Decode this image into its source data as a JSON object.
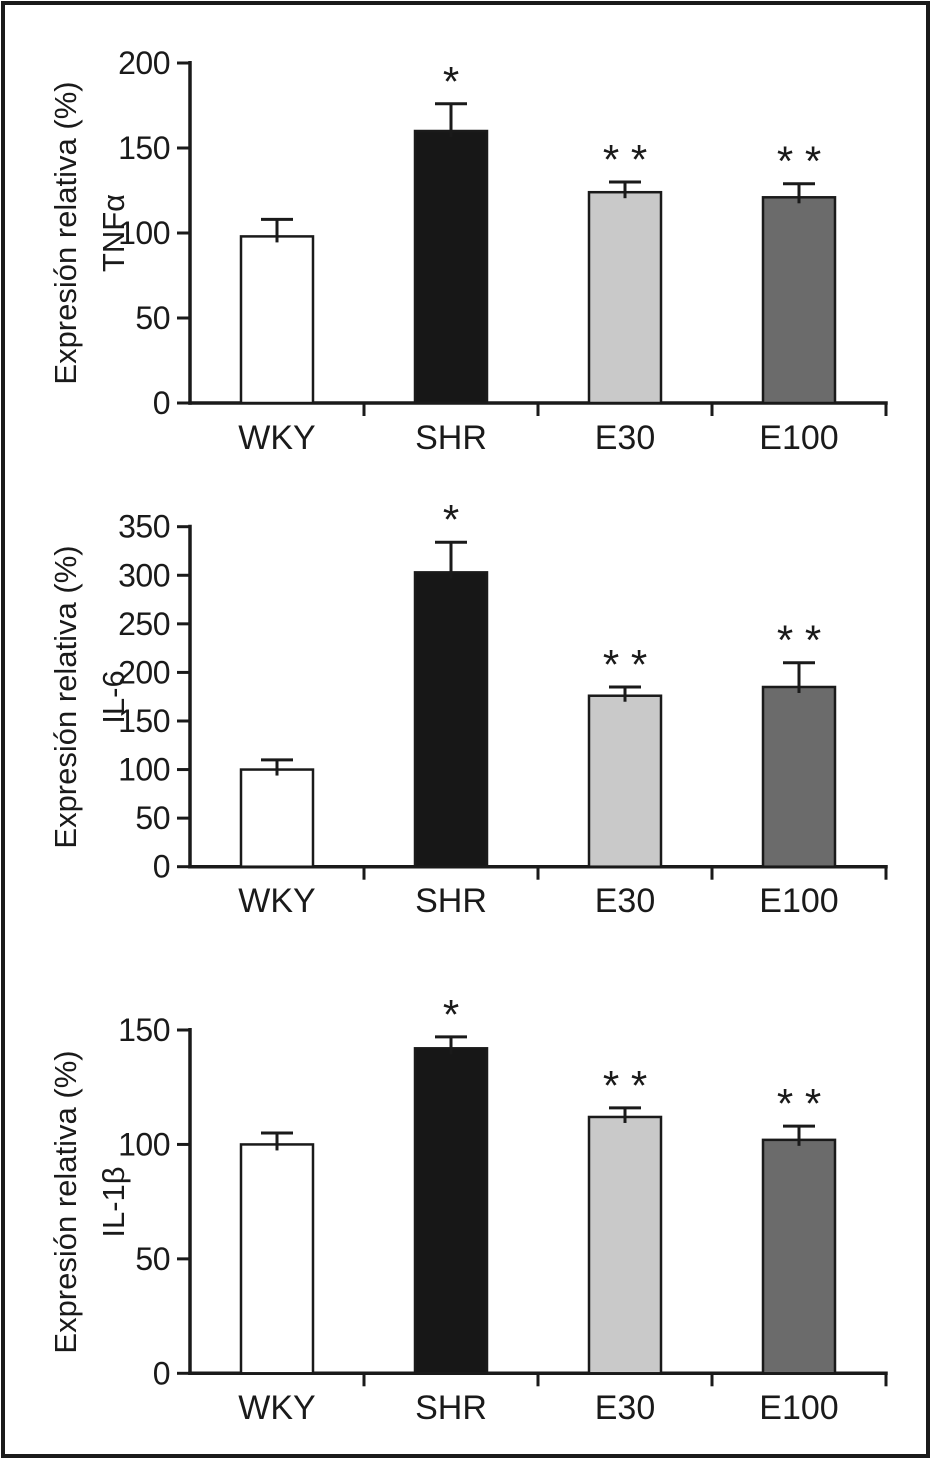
{
  "figure": {
    "background_color": "#ffffff",
    "frame_color": "#1a1a1a",
    "text_color": "#1a1a1a"
  },
  "bar_style": {
    "outline_color": "#1a1a1a",
    "fill_colors": [
      "#ffffff",
      "#171717",
      "#c9c9c9",
      "#6b6b6b"
    ]
  },
  "chart_data": [
    {
      "type": "bar",
      "title": "",
      "ylabel": "Expresión relativa (%)",
      "ylabel_line2": "TNFα",
      "xlabel": "",
      "categories": [
        "WKY",
        "SHR",
        "E30",
        "E100"
      ],
      "values": [
        98,
        160,
        124,
        121
      ],
      "errors_plus": [
        10,
        16,
        6,
        8
      ],
      "significance": [
        "",
        "*",
        "**",
        "**"
      ],
      "ylim": [
        0,
        200
      ],
      "yticks": [
        0,
        50,
        100,
        150,
        200
      ],
      "grid": false,
      "legend": null,
      "bar_colors": [
        "#ffffff",
        "#171717",
        "#c9c9c9",
        "#6b6b6b"
      ]
    },
    {
      "type": "bar",
      "title": "",
      "ylabel": "Expresión relativa (%)",
      "ylabel_line2": "IL-6",
      "xlabel": "",
      "categories": [
        "WKY",
        "SHR",
        "E30",
        "E100"
      ],
      "values": [
        100,
        303,
        176,
        185
      ],
      "errors_plus": [
        10,
        31,
        9,
        25
      ],
      "significance": [
        "",
        "*",
        "**",
        "**"
      ],
      "ylim": [
        0,
        350
      ],
      "yticks": [
        0,
        50,
        100,
        150,
        200,
        250,
        300,
        350
      ],
      "grid": false,
      "legend": null,
      "bar_colors": [
        "#ffffff",
        "#171717",
        "#c9c9c9",
        "#6b6b6b"
      ]
    },
    {
      "type": "bar",
      "title": "",
      "ylabel": "Expresión relativa (%)",
      "ylabel_line2": "IL-1β",
      "xlabel": "",
      "categories": [
        "WKY",
        "SHR",
        "E30",
        "E100"
      ],
      "values": [
        100,
        142,
        112,
        102
      ],
      "errors_plus": [
        5,
        5,
        4,
        6
      ],
      "significance": [
        "",
        "*",
        "**",
        "**"
      ],
      "ylim": [
        0,
        150
      ],
      "yticks": [
        0,
        50,
        100,
        150
      ],
      "grid": false,
      "legend": null,
      "bar_colors": [
        "#ffffff",
        "#171717",
        "#c9c9c9",
        "#6b6b6b"
      ]
    }
  ]
}
